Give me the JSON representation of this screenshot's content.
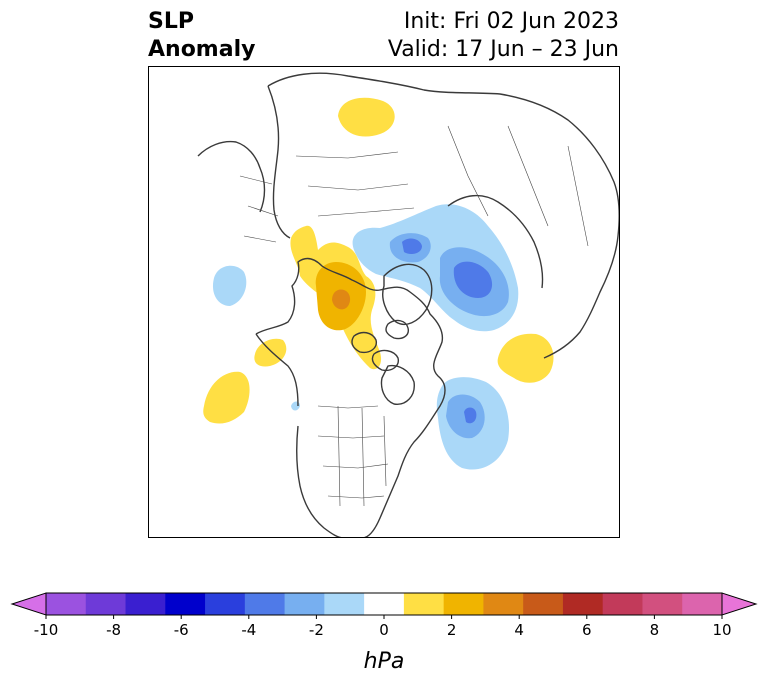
{
  "title": {
    "variable_line1": "SLP",
    "variable_line2": "Anomaly",
    "init_line": "Init: Fri 02 Jun 2023",
    "valid_line": "Valid: 17 Jun – 23 Jun"
  },
  "colorbar": {
    "unit": "hPa",
    "ticks": [
      "-10",
      "-8",
      "-6",
      "-4",
      "-2",
      "0",
      "2",
      "4",
      "6",
      "8",
      "10"
    ],
    "extend": "both",
    "colors": [
      "#d66fe8",
      "#9b52e0",
      "#6e3ad8",
      "#3a1fd0",
      "#0000cc",
      "#2a3fdd",
      "#4f7ae8",
      "#77aff0",
      "#aad8f8",
      "#ffffff",
      "#ffdf44",
      "#f0b400",
      "#e08814",
      "#c85a19",
      "#b02a24",
      "#c23a5a",
      "#d2507f",
      "#dc64ad",
      "#e874d8"
    ]
  },
  "map": {
    "projection": "polar-stereographic-north",
    "anomalies": [
      {
        "sign": "positive",
        "level_max": 4,
        "region": "Gulf of Alaska / western Canada"
      },
      {
        "sign": "positive",
        "level_max": 2,
        "region": "northwest Russia"
      },
      {
        "sign": "positive",
        "level_max": 2,
        "region": "central North Pacific"
      },
      {
        "sign": "positive",
        "level_max": 2,
        "region": "northeast Atlantic"
      },
      {
        "sign": "negative",
        "level_max": -4,
        "region": "Laptev / Kara Sea"
      },
      {
        "sign": "negative",
        "level_max": -4,
        "region": "Labrador Sea / Newfoundland"
      },
      {
        "sign": "negative",
        "level_max": -2,
        "region": "western North Pacific"
      }
    ],
    "colors": {
      "pos1": "#ffdf44",
      "pos2": "#f0b400",
      "pos3": "#e08814",
      "neg1": "#aad8f8",
      "neg2": "#77aff0",
      "neg3": "#4f7ae8",
      "coast": "#3a3a3a"
    }
  }
}
